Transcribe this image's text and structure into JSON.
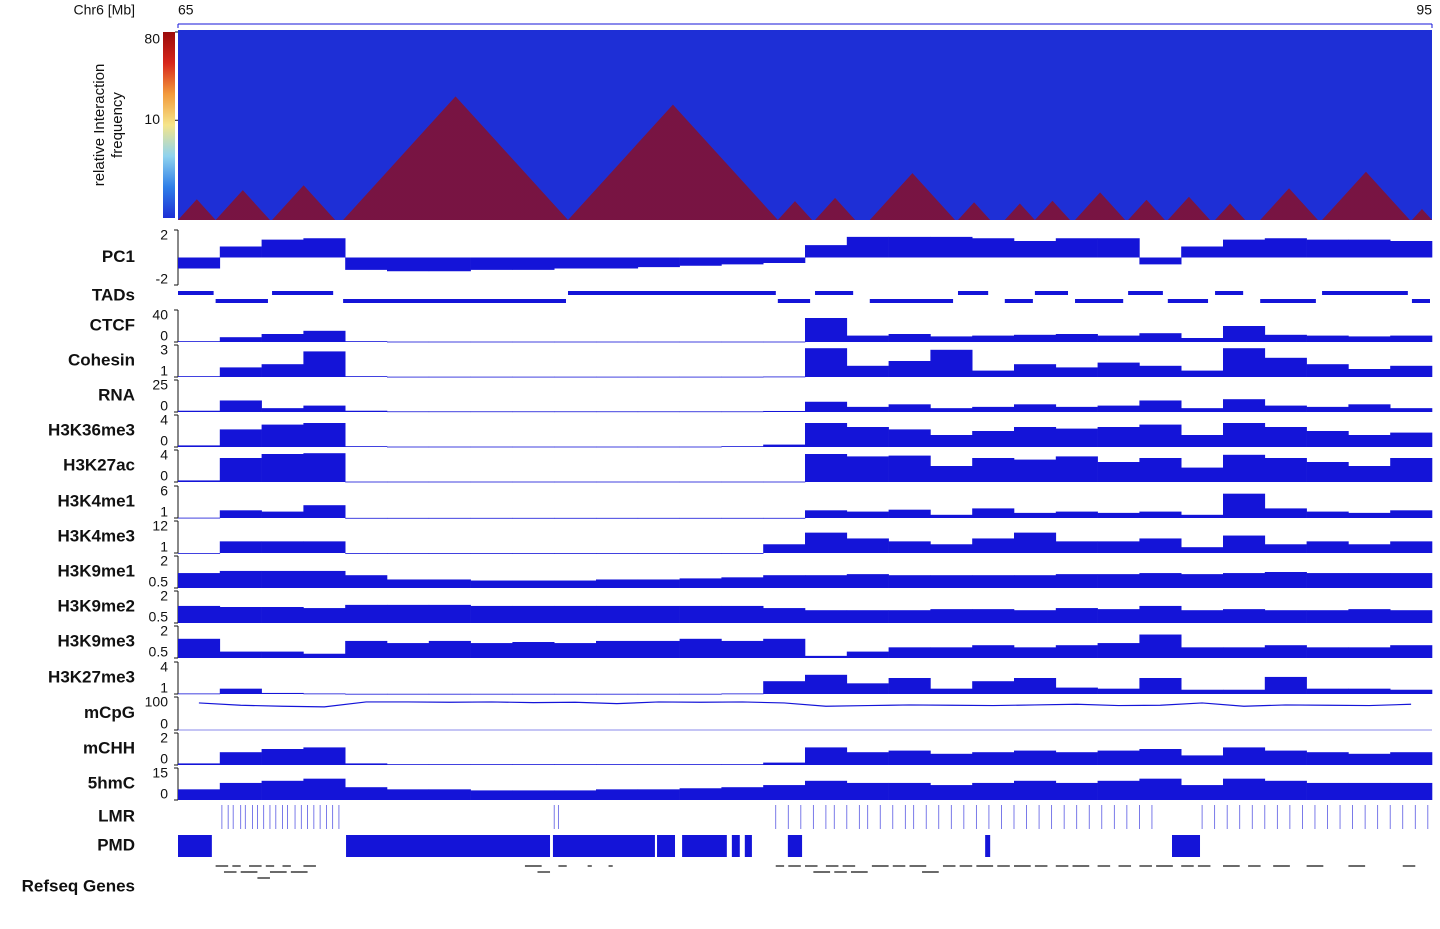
{
  "chart_data": {
    "type": "genome-browser",
    "xlabel": "Chr6 [Mb]",
    "xlim": [
      65,
      95
    ],
    "xticks": [
      65,
      95
    ],
    "color": "#1414d8",
    "bins": [
      65,
      66,
      67,
      68,
      69,
      70,
      71,
      72,
      73,
      74,
      75,
      76,
      77,
      78,
      79,
      80,
      81,
      82,
      83,
      84,
      85,
      86,
      87,
      88,
      89,
      90,
      91,
      92,
      93,
      94,
      95
    ],
    "heatmap": {
      "label": [
        "relative Interaction",
        "frequency"
      ],
      "clim": [
        1,
        80
      ],
      "cticks": [
        10,
        80
      ],
      "log": true,
      "colormap": [
        "#1e2fd6",
        "#2f7fe8",
        "#8fd3ee",
        "#f5e58a",
        "#f29a3c",
        "#d7261c",
        "#9a0a0a"
      ]
    },
    "tracks": [
      {
        "name": "PC1",
        "type": "bar",
        "ylim": [
          -2,
          2
        ],
        "yticks": [
          2,
          -2
        ],
        "values": [
          -0.8,
          0.8,
          1.3,
          1.4,
          -0.9,
          -1.0,
          -1.0,
          -0.9,
          -0.9,
          -0.8,
          -0.8,
          -0.7,
          -0.6,
          -0.5,
          -0.4,
          0.9,
          1.5,
          1.5,
          1.5,
          1.4,
          1.2,
          1.4,
          1.4,
          -0.5,
          0.8,
          1.3,
          1.4,
          1.3,
          1.3,
          1.2
        ]
      },
      {
        "name": "TADs",
        "type": "segments",
        "segments": [
          [
            65,
            65.9
          ],
          [
            65.9,
            67.2
          ],
          [
            67.25,
            68.76
          ],
          [
            68.95,
            74.33
          ],
          [
            74.33,
            79.35
          ],
          [
            79.35,
            80.17
          ],
          [
            80.24,
            81.2
          ],
          [
            81.55,
            83.59
          ],
          [
            83.66,
            84.43
          ],
          [
            84.78,
            85.5
          ],
          [
            85.5,
            86.34
          ],
          [
            86.46,
            87.66
          ],
          [
            87.73,
            88.61
          ],
          [
            88.68,
            89.69
          ],
          [
            89.81,
            90.53
          ],
          [
            90.89,
            92.27
          ],
          [
            92.37,
            94.47
          ],
          [
            94.52,
            95
          ]
        ]
      },
      {
        "name": "CTCF",
        "type": "bar",
        "ylim": [
          0,
          40
        ],
        "yticks": [
          40,
          0
        ],
        "values": [
          1,
          6,
          10,
          14,
          1,
          0.5,
          0.5,
          0.5,
          0.5,
          0.5,
          0.5,
          0.5,
          0.5,
          0.5,
          0.5,
          30,
          8,
          10,
          7,
          8,
          9,
          10,
          8,
          11,
          5,
          20,
          9,
          8,
          7,
          8
        ]
      },
      {
        "name": "Cohesin",
        "type": "bar",
        "ylim": [
          1,
          3
        ],
        "yticks": [
          3,
          1
        ],
        "values": [
          1.05,
          1.6,
          1.8,
          2.6,
          1.05,
          1.02,
          1.02,
          1.02,
          1.02,
          1.02,
          1.02,
          1.02,
          1.02,
          1.02,
          1.03,
          2.8,
          1.7,
          2.0,
          2.7,
          1.4,
          1.8,
          1.6,
          1.9,
          1.7,
          1.4,
          2.8,
          2.2,
          1.8,
          1.5,
          1.7
        ]
      },
      {
        "name": "RNA",
        "type": "bar",
        "ylim": [
          0,
          25
        ],
        "yticks": [
          25,
          0
        ],
        "values": [
          1,
          9,
          3,
          5,
          1,
          0.5,
          0.5,
          0.5,
          0.5,
          0.5,
          0.5,
          0.5,
          0.5,
          0.5,
          0.8,
          8,
          4,
          6,
          3,
          4,
          6,
          4,
          5,
          9,
          3,
          10,
          5,
          4,
          6,
          3
        ]
      },
      {
        "name": "H3K36me3",
        "type": "bar",
        "ylim": [
          0,
          4
        ],
        "yticks": [
          4,
          0
        ],
        "values": [
          0.2,
          2.2,
          2.8,
          3.0,
          0.1,
          0.05,
          0.05,
          0.05,
          0.05,
          0.05,
          0.05,
          0.05,
          0.05,
          0.1,
          0.3,
          3.0,
          2.5,
          2.2,
          1.5,
          2.0,
          2.5,
          2.3,
          2.5,
          2.8,
          1.5,
          3.0,
          2.5,
          2.0,
          1.5,
          1.8
        ]
      },
      {
        "name": "H3K27ac",
        "type": "bar",
        "ylim": [
          0,
          4
        ],
        "yticks": [
          4,
          0
        ],
        "values": [
          0.2,
          3.0,
          3.5,
          3.6,
          0.05,
          0.05,
          0.05,
          0.05,
          0.05,
          0.05,
          0.05,
          0.05,
          0.05,
          0.05,
          0.05,
          3.5,
          3.2,
          3.3,
          2.0,
          3.0,
          2.8,
          3.2,
          2.5,
          3.0,
          1.8,
          3.4,
          3.0,
          2.5,
          2.0,
          3.0
        ]
      },
      {
        "name": "H3K4me1",
        "type": "bar",
        "ylim": [
          1,
          6
        ],
        "yticks": [
          6,
          1
        ],
        "values": [
          1.05,
          2.2,
          2.0,
          3.0,
          1.02,
          1.02,
          1.02,
          1.02,
          1.02,
          1.02,
          1.02,
          1.02,
          1.02,
          1.02,
          1.02,
          2.2,
          2.0,
          2.3,
          1.5,
          2.5,
          1.8,
          2.0,
          1.8,
          2.0,
          1.5,
          4.8,
          2.5,
          2.0,
          1.8,
          2.2
        ]
      },
      {
        "name": "H3K4me3",
        "type": "bar",
        "ylim": [
          1,
          12
        ],
        "yticks": [
          12,
          1
        ],
        "values": [
          1,
          5,
          5,
          5,
          1,
          1,
          1,
          1,
          1,
          1,
          1,
          1,
          1,
          1,
          4,
          8,
          6,
          5,
          4,
          6,
          8,
          5,
          5,
          6,
          3,
          7,
          4,
          5,
          4,
          5
        ]
      },
      {
        "name": "H3K9me1",
        "type": "bar",
        "ylim": [
          0.5,
          2
        ],
        "yticks": [
          2,
          0.5
        ],
        "values": [
          1.2,
          1.3,
          1.3,
          1.3,
          1.1,
          0.9,
          0.9,
          0.85,
          0.85,
          0.85,
          0.9,
          0.9,
          0.95,
          1.0,
          1.1,
          1.1,
          1.15,
          1.1,
          1.1,
          1.1,
          1.1,
          1.15,
          1.15,
          1.2,
          1.15,
          1.2,
          1.25,
          1.2,
          1.2,
          1.2
        ]
      },
      {
        "name": "H3K9me2",
        "type": "bar",
        "ylim": [
          0.5,
          2
        ],
        "yticks": [
          2,
          0.5
        ],
        "values": [
          1.3,
          1.25,
          1.25,
          1.2,
          1.35,
          1.35,
          1.35,
          1.3,
          1.3,
          1.3,
          1.3,
          1.3,
          1.3,
          1.3,
          1.2,
          1.1,
          1.1,
          1.1,
          1.15,
          1.15,
          1.1,
          1.2,
          1.15,
          1.3,
          1.1,
          1.15,
          1.1,
          1.1,
          1.15,
          1.1
        ]
      },
      {
        "name": "H3K9me3",
        "type": "bar",
        "ylim": [
          0.5,
          2
        ],
        "yticks": [
          2,
          0.5
        ],
        "values": [
          1.4,
          0.8,
          0.8,
          0.7,
          1.3,
          1.2,
          1.3,
          1.2,
          1.25,
          1.2,
          1.3,
          1.3,
          1.4,
          1.3,
          1.4,
          0.6,
          0.8,
          1.0,
          1.0,
          1.1,
          1.0,
          1.1,
          1.2,
          1.6,
          1.0,
          1.0,
          1.1,
          1.0,
          1.0,
          1.1
        ]
      },
      {
        "name": "H3K27me3",
        "type": "bar",
        "ylim": [
          1,
          4
        ],
        "yticks": [
          4,
          1
        ],
        "values": [
          1.05,
          1.5,
          1.1,
          1.05,
          1.02,
          1.02,
          1.02,
          1.02,
          1.02,
          1.02,
          1.02,
          1.02,
          1.02,
          1.05,
          2.2,
          2.8,
          2.0,
          2.5,
          1.5,
          2.2,
          2.5,
          1.6,
          1.5,
          2.5,
          1.4,
          1.4,
          2.6,
          1.5,
          1.5,
          1.4
        ]
      },
      {
        "name": "mCpG",
        "type": "line",
        "ylim": [
          0,
          100
        ],
        "yticks": [
          100,
          0
        ],
        "values": [
          82,
          75,
          72,
          70,
          85,
          85,
          84,
          85,
          83,
          84,
          80,
          85,
          84,
          85,
          82,
          72,
          74,
          76,
          75,
          74,
          76,
          78,
          74,
          75,
          82,
          72,
          76,
          75,
          74,
          78
        ]
      },
      {
        "name": "mCHH",
        "type": "bar",
        "ylim": [
          0,
          2
        ],
        "yticks": [
          2,
          0
        ],
        "values": [
          0.1,
          0.8,
          1.0,
          1.1,
          0.1,
          0.05,
          0.05,
          0.05,
          0.05,
          0.05,
          0.05,
          0.05,
          0.05,
          0.05,
          0.15,
          1.1,
          0.8,
          0.9,
          0.7,
          0.8,
          0.9,
          0.8,
          0.9,
          1.0,
          0.6,
          1.1,
          0.9,
          0.8,
          0.7,
          0.8
        ]
      },
      {
        "name": "5hmC",
        "type": "bar",
        "ylim": [
          0,
          15
        ],
        "yticks": [
          15,
          0
        ],
        "values": [
          5,
          8,
          9,
          10,
          6,
          5,
          5,
          4.5,
          4.5,
          4.5,
          5,
          5,
          5.5,
          6,
          7,
          9,
          8,
          8,
          7,
          8,
          9,
          8,
          9,
          10,
          7,
          10,
          9,
          8,
          8,
          8
        ]
      },
      {
        "name": "LMR",
        "type": "ticks",
        "positions": [
          66.05,
          66.2,
          66.32,
          66.5,
          66.61,
          66.78,
          66.9,
          67.05,
          67.2,
          67.34,
          67.5,
          67.62,
          67.8,
          67.95,
          68.1,
          68.25,
          68.4,
          68.55,
          68.7,
          68.85,
          74.0,
          74.1,
          79.3,
          79.6,
          79.9,
          80.2,
          80.5,
          80.7,
          81.0,
          81.3,
          81.5,
          81.8,
          82.1,
          82.4,
          82.6,
          82.9,
          83.2,
          83.5,
          83.8,
          84.1,
          84.4,
          84.7,
          85.0,
          85.3,
          85.6,
          85.9,
          86.2,
          86.5,
          86.8,
          87.1,
          87.4,
          87.7,
          88.0,
          88.3,
          89.5,
          89.8,
          90.1,
          90.4,
          90.7,
          91.0,
          91.3,
          91.6,
          91.9,
          92.2,
          92.5,
          92.8,
          93.1,
          93.4,
          93.7,
          94.0,
          94.3,
          94.6,
          94.9
        ]
      },
      {
        "name": "PMD",
        "type": "blocks",
        "segments": [
          [
            65,
            65.81
          ],
          [
            69.02,
            73.9
          ],
          [
            73.97,
            76.41
          ],
          [
            76.46,
            76.89
          ],
          [
            77.06,
            78.13
          ],
          [
            78.25,
            78.44
          ],
          [
            78.56,
            78.73
          ],
          [
            79.59,
            79.93
          ],
          [
            84.31,
            84.43
          ],
          [
            88.78,
            89.45
          ]
        ]
      },
      {
        "name": "Refseq Genes",
        "type": "genes",
        "segments": [
          [
            65.9,
            66.2
          ],
          [
            66.1,
            66.4
          ],
          [
            66.3,
            66.5
          ],
          [
            66.5,
            66.9
          ],
          [
            66.7,
            67.0
          ],
          [
            66.9,
            67.2
          ],
          [
            67.1,
            67.3
          ],
          [
            67.2,
            67.6
          ],
          [
            67.5,
            67.7
          ],
          [
            67.7,
            68.1
          ],
          [
            68.0,
            68.3
          ],
          [
            73.3,
            73.7
          ],
          [
            73.6,
            73.9
          ],
          [
            74.1,
            74.3
          ],
          [
            74.8,
            74.9
          ],
          [
            75.3,
            75.4
          ],
          [
            79.3,
            79.5
          ],
          [
            79.6,
            79.9
          ],
          [
            80.0,
            80.3
          ],
          [
            80.2,
            80.6
          ],
          [
            80.5,
            80.8
          ],
          [
            80.7,
            81.0
          ],
          [
            80.9,
            81.2
          ],
          [
            81.1,
            81.5
          ],
          [
            81.6,
            82.0
          ],
          [
            82.1,
            82.4
          ],
          [
            82.5,
            82.9
          ],
          [
            82.8,
            83.2
          ],
          [
            83.3,
            83.6
          ],
          [
            83.7,
            84.0
          ],
          [
            84.1,
            84.5
          ],
          [
            84.6,
            84.9
          ],
          [
            85.0,
            85.4
          ],
          [
            85.5,
            85.8
          ],
          [
            86.0,
            86.3
          ],
          [
            86.4,
            86.8
          ],
          [
            87.0,
            87.3
          ],
          [
            87.5,
            87.8
          ],
          [
            88.0,
            88.3
          ],
          [
            88.4,
            88.8
          ],
          [
            89.0,
            89.3
          ],
          [
            89.4,
            89.7
          ],
          [
            90.0,
            90.4
          ],
          [
            90.6,
            90.9
          ],
          [
            91.2,
            91.6
          ],
          [
            92.0,
            92.4
          ],
          [
            93.0,
            93.4
          ],
          [
            94.3,
            94.6
          ]
        ]
      }
    ]
  }
}
